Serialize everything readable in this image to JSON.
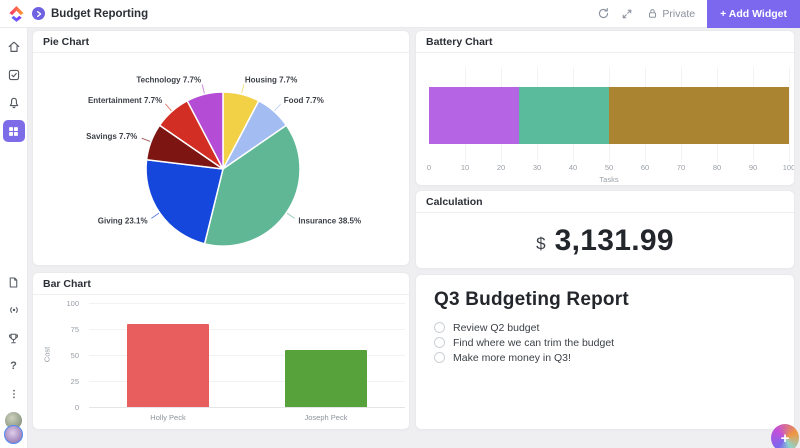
{
  "app": {
    "accent_color": "#7b68ee"
  },
  "header": {
    "title": "Budget Reporting",
    "privacy_label": "Private",
    "add_widget_label": "+ Add Widget",
    "icons": [
      "refresh-icon",
      "expand-view-icon",
      "lock-icon"
    ]
  },
  "sidebar": {
    "top_icons": [
      "home-icon",
      "tasks-icon",
      "notifications-icon",
      "dashboards-icon"
    ],
    "active_icon": "dashboards-icon",
    "bottom_icons": [
      "docs-icon",
      "pulse-icon",
      "goals-icon",
      "help-icon",
      "more-icon"
    ],
    "avatar_count": 2
  },
  "calculation": {
    "title": "Calculation",
    "currency_symbol": "$",
    "value": "3,131.99"
  },
  "report": {
    "title": "Q3 Budgeting Report",
    "items": [
      {
        "label": "Review Q2 budget",
        "checked": false
      },
      {
        "label": "Find where we can trim the budget",
        "checked": false
      },
      {
        "label": "Make more money in Q3!",
        "checked": false
      }
    ]
  },
  "fab": {
    "label": "+"
  },
  "chart_data": [
    {
      "type": "pie",
      "title": "Pie Chart",
      "labels": [
        "Housing",
        "Food",
        "Insurance",
        "Giving",
        "Savings",
        "Entertainment",
        "Technology"
      ],
      "values": [
        7.7,
        7.7,
        38.5,
        23.1,
        7.7,
        7.7,
        7.7
      ],
      "colors": [
        "#f2d147",
        "#a3bcf2",
        "#5fb795",
        "#1547dc",
        "#7d1512",
        "#d32e24",
        "#b44cd6"
      ],
      "start_angle_deg": 0,
      "direction": "clockwise",
      "legend": "callout-labels",
      "label_format": "name value%"
    },
    {
      "type": "bar",
      "title": "Battery Chart",
      "orientation": "horizontal",
      "stacked": true,
      "series": [
        {
          "name": "segment-1",
          "values": [
            25
          ],
          "color": "#b564e3"
        },
        {
          "name": "segment-2",
          "values": [
            25
          ],
          "color": "#5aba9c"
        },
        {
          "name": "segment-3",
          "values": [
            50
          ],
          "color": "#aa8430"
        }
      ],
      "xlabel": "Tasks",
      "xticks": [
        0,
        10,
        20,
        30,
        40,
        50,
        60,
        70,
        80,
        90,
        100
      ],
      "xlim": [
        0,
        100
      ],
      "grid": true
    },
    {
      "type": "bar",
      "title": "Bar Chart",
      "orientation": "vertical",
      "categories": [
        "Holly Peck",
        "Joseph Peck"
      ],
      "values": [
        80,
        55
      ],
      "colors": [
        "#e85d5d",
        "#58a23c"
      ],
      "ylabel": "Cost",
      "yticks": [
        0,
        25,
        50,
        75,
        100
      ],
      "ylim": [
        0,
        100
      ],
      "grid": true
    }
  ]
}
